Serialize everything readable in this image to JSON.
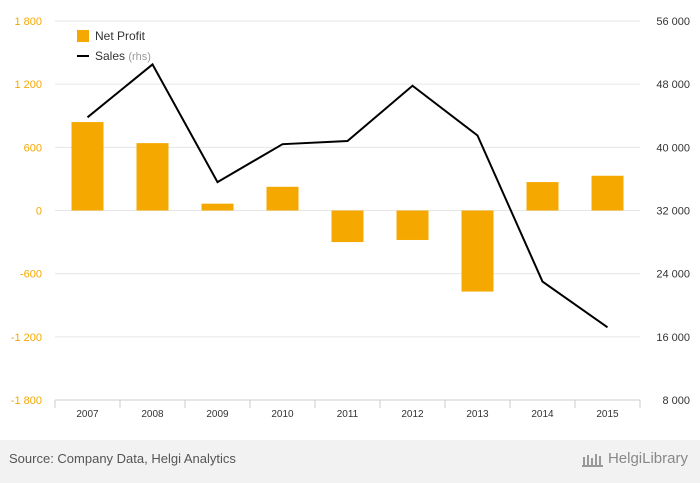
{
  "chart_data": {
    "type": "bar+line",
    "categories": [
      "2007",
      "2008",
      "2009",
      "2010",
      "2011",
      "2012",
      "2013",
      "2014",
      "2015"
    ],
    "series": [
      {
        "name": "Net Profit",
        "type": "bar",
        "axis": "left",
        "color": "#f5a800",
        "values": [
          840,
          640,
          65,
          225,
          -300,
          -280,
          -770,
          270,
          330
        ]
      },
      {
        "name": "Sales",
        "legend_suffix": "(rhs)",
        "type": "line",
        "axis": "right",
        "color": "#000000",
        "values": [
          43800,
          50500,
          35600,
          40400,
          40800,
          47800,
          41500,
          23000,
          17200
        ]
      }
    ],
    "left_axis": {
      "min": -1800,
      "max": 1800,
      "ticks": [
        "1 800",
        "1 200",
        "600",
        "0",
        "-600",
        "-1 200",
        "-1 800"
      ],
      "tick_values": [
        1800,
        1200,
        600,
        0,
        -600,
        -1200,
        -1800
      ],
      "color": "#f5a800"
    },
    "right_axis": {
      "min": 8000,
      "max": 56000,
      "ticks": [
        "56 000",
        "48 000",
        "40 000",
        "32 000",
        "24 000",
        "16 000",
        "8 000"
      ],
      "tick_values": [
        56000,
        48000,
        40000,
        32000,
        24000,
        16000,
        8000
      ]
    },
    "legend": {
      "position": "top-left",
      "items": [
        {
          "label": "Net Profit",
          "suffix": ""
        },
        {
          "label": "Sales",
          "suffix": "(rhs)"
        }
      ]
    },
    "grid": true
  },
  "footer": {
    "source": "Source: Company Data, Helgi Analytics",
    "brand": "HelgiLibrary"
  }
}
